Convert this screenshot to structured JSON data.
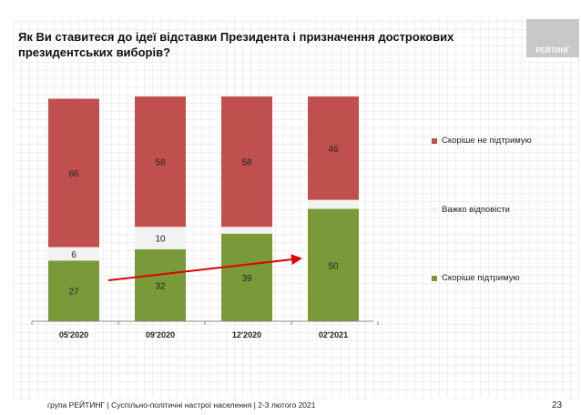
{
  "title": "Як Ви ставитеся до ідеї відставки Президента і призначення дострокових президентських виборів?",
  "logo_text": "РЕЙТИНГ",
  "footer": "група РЕЙТИНГ | Суспільно-політичні настрої населення  | 2-3 лютого 2021",
  "page_number": "23",
  "chart_data": {
    "type": "bar",
    "stacked": true,
    "categories": [
      "05'2020",
      "09'2020",
      "12'2020",
      "02'2021"
    ],
    "series": [
      {
        "name": "Скоріше підтримую",
        "color": "#7a9a3a",
        "values": [
          27,
          32,
          39,
          50
        ]
      },
      {
        "name": "Важко відповісти",
        "color": "#f2f2f2",
        "values": [
          6,
          10,
          3,
          4
        ]
      },
      {
        "name": "Скоріше не підтримую",
        "color": "#c0504d",
        "values": [
          66,
          58,
          58,
          46
        ]
      }
    ],
    "ylim": [
      0,
      100
    ],
    "trend_arrow": {
      "from_category": "05'2020",
      "to_category": "02'2021",
      "color": "#e00000"
    },
    "legend_placement": "right"
  }
}
